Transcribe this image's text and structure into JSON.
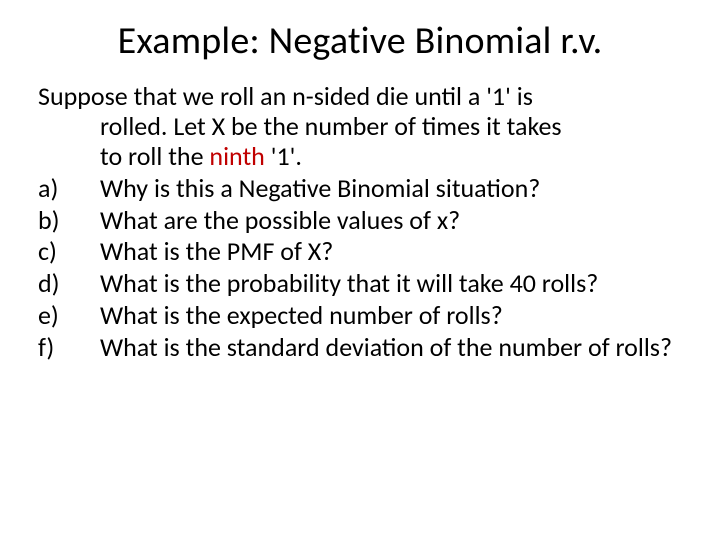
{
  "title": "Example: Negative Binomial r.v.",
  "intro": {
    "line1": "Suppose that we roll an n-sided die until a '1' is",
    "line2_pre": "rolled. Let X be the number of times it takes",
    "line3_pre": "to roll the ",
    "line3_highlight": "ninth",
    "line3_post": " '1'."
  },
  "items": [
    {
      "bullet": "a)",
      "text": "Why is this a Negative Binomial situation?"
    },
    {
      "bullet": "b)",
      "text": "What are the possible values of x?"
    },
    {
      "bullet": "c)",
      "text": "What is the PMF of X?"
    },
    {
      "bullet": "d)",
      "text": "What is the probability that it will take 40 rolls?"
    },
    {
      "bullet": "e)",
      "text": "What is the expected number of rolls?"
    },
    {
      "bullet": "f)",
      "text": "What is the standard deviation of the number of rolls?"
    }
  ],
  "style": {
    "highlight_color": "#c00000",
    "text_color": "#000000",
    "background_color": "#ffffff",
    "title_fontsize": 38,
    "body_fontsize": 26
  }
}
